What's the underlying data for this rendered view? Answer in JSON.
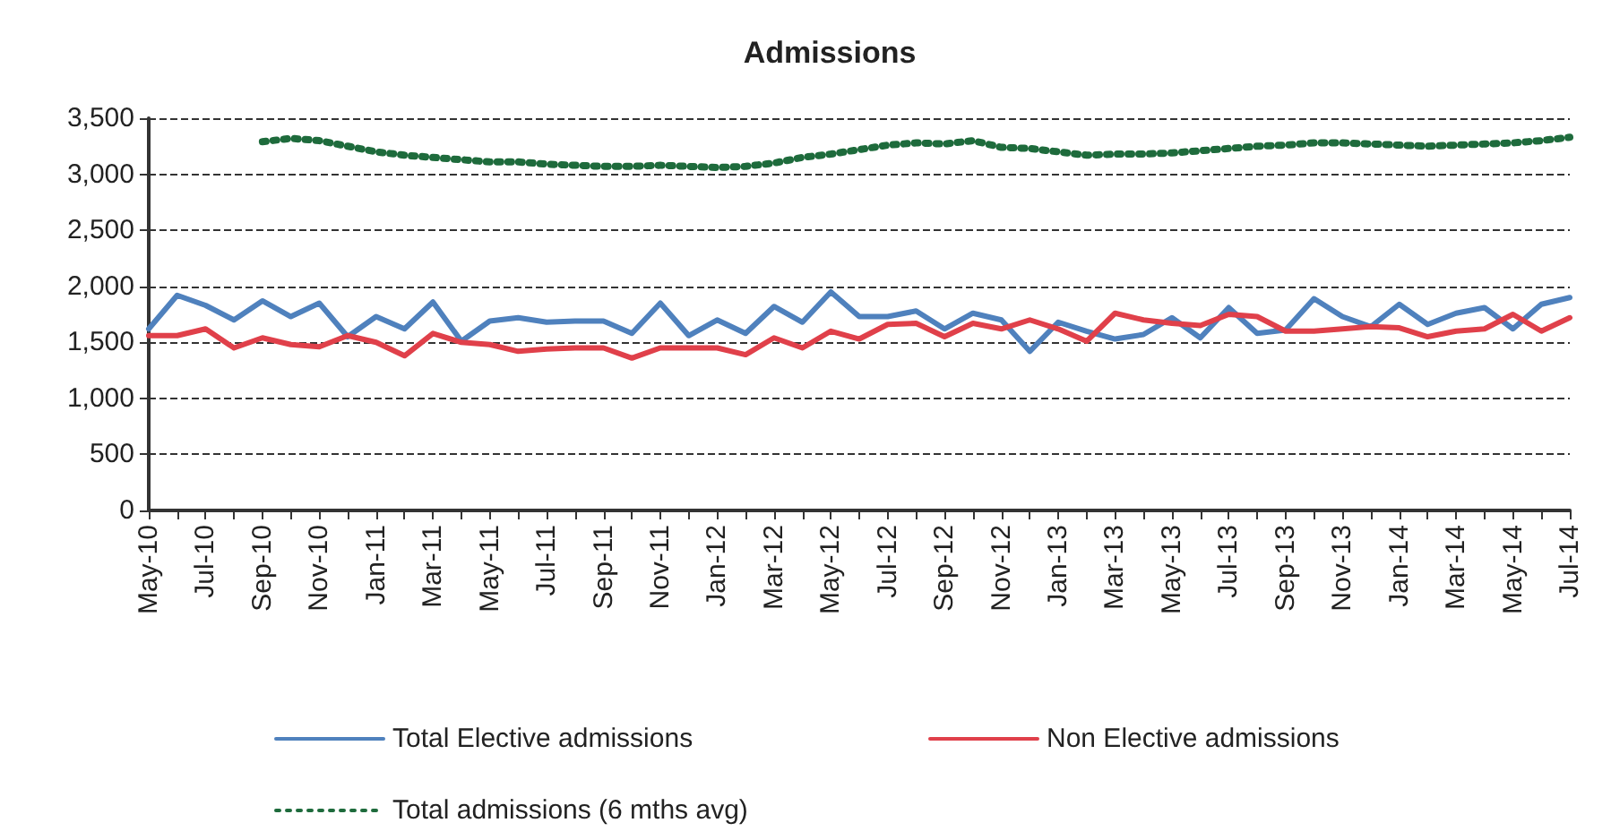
{
  "chart_data": {
    "type": "line",
    "title": "Admissions",
    "categories": [
      "May-10",
      null,
      "Jul-10",
      null,
      "Sep-10",
      null,
      "Nov-10",
      null,
      "Jan-11",
      null,
      "Mar-11",
      null,
      "May-11",
      null,
      "Jul-11",
      null,
      "Sep-11",
      null,
      "Nov-11",
      null,
      "Jan-12",
      null,
      "Mar-12",
      null,
      "May-12",
      null,
      "Jul-12",
      null,
      "Sep-12",
      null,
      "Nov-12",
      null,
      "Jan-13",
      null,
      "Mar-13",
      null,
      "May-13",
      null,
      "Jul-13",
      null,
      "Sep-13",
      null,
      "Nov-13",
      null,
      "Jan-14",
      null,
      "Mar-14",
      null,
      "May-14",
      null,
      "Jul-14"
    ],
    "series": [
      {
        "name": "Total Elective admissions",
        "color": "#4f81bd",
        "line_style": "solid",
        "values": [
          1620,
          1920,
          1830,
          1700,
          1870,
          1730,
          1850,
          1550,
          1730,
          1620,
          1860,
          1510,
          1690,
          1720,
          1680,
          1690,
          1690,
          1580,
          1850,
          1560,
          1700,
          1580,
          1820,
          1680,
          1950,
          1730,
          1730,
          1780,
          1620,
          1760,
          1700,
          1420,
          1680,
          1600,
          1530,
          1570,
          1720,
          1540,
          1810,
          1580,
          1610,
          1890,
          1730,
          1640,
          1840,
          1660,
          1760,
          1810,
          1620,
          1840,
          1900
        ]
      },
      {
        "name": "Non Elective admissions",
        "color": "#e0404a",
        "line_style": "solid",
        "values": [
          1560,
          1560,
          1620,
          1450,
          1540,
          1480,
          1460,
          1560,
          1500,
          1380,
          1580,
          1500,
          1480,
          1420,
          1440,
          1450,
          1450,
          1360,
          1450,
          1450,
          1450,
          1390,
          1540,
          1450,
          1600,
          1530,
          1660,
          1670,
          1550,
          1670,
          1620,
          1700,
          1620,
          1510,
          1760,
          1700,
          1670,
          1650,
          1750,
          1730,
          1600,
          1600,
          1620,
          1640,
          1630,
          1550,
          1600,
          1620,
          1750,
          1600,
          1720
        ]
      },
      {
        "name": "Total admissions (6 mths avg)",
        "color": "#1e6b3c",
        "line_style": "dotted",
        "values": [
          null,
          null,
          null,
          null,
          3290,
          3320,
          3300,
          3250,
          3200,
          3170,
          3150,
          3130,
          3110,
          3110,
          3090,
          3080,
          3070,
          3070,
          3080,
          3070,
          3060,
          3070,
          3100,
          3150,
          3180,
          3220,
          3260,
          3280,
          3270,
          3300,
          3240,
          3230,
          3200,
          3170,
          3180,
          3180,
          3190,
          3210,
          3230,
          3250,
          3260,
          3280,
          3280,
          3270,
          3260,
          3250,
          3260,
          3270,
          3280,
          3300,
          3330
        ]
      }
    ],
    "ylim": [
      0,
      3500
    ],
    "yticks": [
      0,
      500,
      {
        "value": 1000,
        "label": "1,000"
      },
      {
        "value": 1500,
        "label": "1,500"
      },
      {
        "value": 2000,
        "label": "2,000"
      },
      {
        "value": 2500,
        "label": "2,500"
      },
      {
        "value": 3000,
        "label": "3,000"
      },
      {
        "value": 3500,
        "label": "3,500"
      }
    ],
    "grid": "y",
    "legend": "bottom",
    "marker": "none"
  }
}
